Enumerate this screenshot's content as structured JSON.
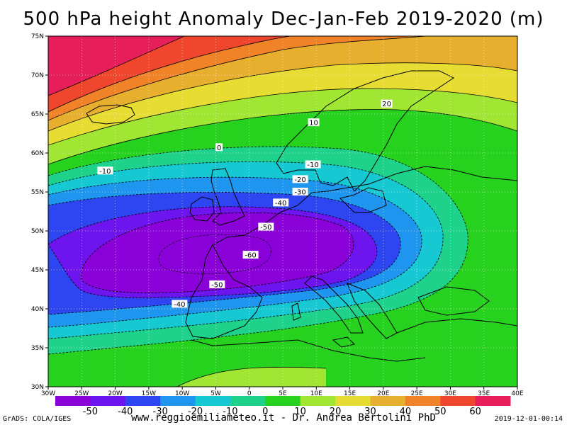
{
  "title": "500 hPa height Anomaly Dec-Jan-Feb 2019-2020 (m)",
  "footer": {
    "left": "GrADS: COLA/IGES",
    "center": "www.reggioemiliameteo.it - Dr. Andrea Bertolini PhD",
    "right": "2019-12-01-00:14"
  },
  "chart_data": {
    "type": "heatmap",
    "variable": "500 hPa geopotential height anomaly",
    "units": "m",
    "lon_ticks": [
      "30W",
      "25W",
      "20W",
      "15W",
      "10W",
      "5W",
      "0",
      "5E",
      "10E",
      "15E",
      "20E",
      "25E",
      "30E",
      "35E",
      "40E"
    ],
    "lat_ticks": [
      "30N",
      "35N",
      "40N",
      "45N",
      "50N",
      "55N",
      "60N",
      "65N",
      "70N",
      "75N"
    ],
    "xlim": [
      -30,
      40
    ],
    "ylim": [
      30,
      75
    ],
    "grid": true,
    "colorbar": {
      "labels": [
        "-50",
        "-40",
        "-30",
        "-20",
        "-10",
        "0",
        "10",
        "20",
        "30",
        "40",
        "50",
        "60"
      ],
      "colors": [
        "#8a00d8",
        "#6e14ee",
        "#2d46f2",
        "#1e96f0",
        "#15c8d2",
        "#1ed28c",
        "#27d21e",
        "#a0e632",
        "#e6dc32",
        "#e6af2d",
        "#f08228",
        "#f0462d",
        "#e61e5a"
      ]
    },
    "contour_labels": [
      {
        "text": "20",
        "lon": 20.5,
        "lat": 66.3
      },
      {
        "text": "10",
        "lon": 9.6,
        "lat": 63.9
      },
      {
        "text": "0",
        "lon": -4.5,
        "lat": 60.7
      },
      {
        "text": "-10",
        "lon": -21.5,
        "lat": 57.7
      },
      {
        "text": "-10",
        "lon": 9.5,
        "lat": 58.5
      },
      {
        "text": "-20",
        "lon": 7.6,
        "lat": 56.6
      },
      {
        "text": "-30",
        "lon": 7.6,
        "lat": 55.0
      },
      {
        "text": "-40",
        "lon": 4.7,
        "lat": 53.6
      },
      {
        "text": "-50",
        "lon": 2.5,
        "lat": 50.5
      },
      {
        "text": "-60",
        "lon": 0.2,
        "lat": 46.9
      },
      {
        "text": "-50",
        "lon": -4.8,
        "lat": 43.1
      },
      {
        "text": "-40",
        "lon": -10.4,
        "lat": 40.6
      }
    ]
  }
}
